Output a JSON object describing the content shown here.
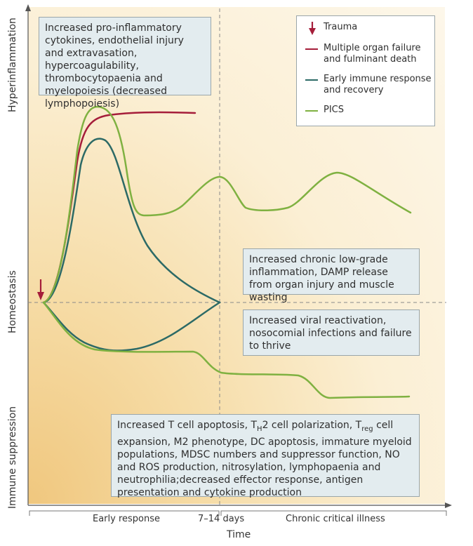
{
  "axes": {
    "y_top": "Hyperinflammation",
    "y_mid": "Homeostasis",
    "y_bottom": "Immune suppression",
    "x_early": "Early response",
    "x_mid": "7–14 days",
    "x_late": "Chronic critical illness",
    "x_title": "Time"
  },
  "legend": {
    "trauma": "Trauma",
    "mof": "Multiple organ failure and fulminant death",
    "early": "Early immune response and recovery",
    "pics": "PICS"
  },
  "colors": {
    "mof": "#a51d3a",
    "early": "#2c6a66",
    "pics": "#7fb141",
    "box_bg": "#e3ecef",
    "box_border": "#9aa6aa"
  },
  "boxes": {
    "top_left": "Increased pro-inflammatory cytokines, endothelial injury and extravasation, hypercoagulability, thrombocytopaenia and myelopoiesis (decreased lymphopoiesis)",
    "mid_upper": "Increased chronic low-grade inflammation, DAMP release from organ injury and muscle wasting",
    "mid_lower": "Increased viral reactivation, nosocomial infections and failure to thrive",
    "bottom": {
      "p1": "Increased T cell apoptosis, T",
      "p1_sub": "H",
      "p2": "2 cell polarization, T",
      "p2_sub": "reg",
      "p3": " cell expansion, M2 phenotype, DC apoptosis, immature myeloid populations, MDSC numbers and suppressor function, NO and ROS production, nitrosylation, lymphopaenia and neutrophilia;decreased effector response, antigen presentation and cytokine production"
    }
  }
}
